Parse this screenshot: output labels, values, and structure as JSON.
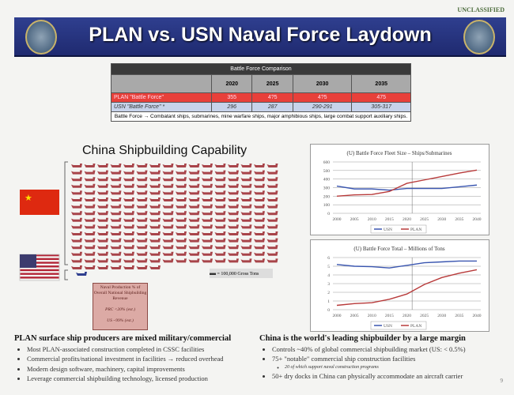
{
  "classification": "UNCLASSIFIED",
  "title": "PLAN vs. USN Naval Force Laydown",
  "table": {
    "caption": "Battle Force Comparison",
    "years": [
      "2020",
      "2025",
      "2030",
      "2035"
    ],
    "rows": [
      {
        "label": "PLAN \"Battle Force\"",
        "values": [
          "355",
          "4?5",
          "4?5",
          "475"
        ]
      },
      {
        "label": "USN \"Battle Force\" *",
        "values": [
          "296",
          "287",
          "290-291",
          "305-317"
        ]
      }
    ],
    "note": "Battle Force → Combatant ships, submarines, mine warfare ships, major amphibious ships, large combat support auxiliary ships."
  },
  "capability": {
    "title": "China Shipbuilding Capability",
    "china_icons": 247,
    "us_icons": 1,
    "legend": "= 100,000 Gross Tons",
    "note_box": {
      "title": "Naval Production % of Overall National Shipbuilding Revenue",
      "prc": "PRC <20% (est.)",
      "us": "US ~99% (est.)"
    }
  },
  "colors": {
    "banner": "#26337a",
    "plan": "#b83a3a",
    "usn": "#3a56b0",
    "ship": "#a8444a"
  },
  "chart_data": [
    {
      "type": "line",
      "title": "(U) Battle Force Fleet Size – Ships/Submarines",
      "categories": [
        "2000",
        "2005",
        "2010",
        "2015",
        "2020",
        "2025",
        "2030",
        "2035",
        "2040"
      ],
      "ylim": [
        0,
        600
      ],
      "yticks": [
        "0",
        "100",
        "200",
        "300",
        "400",
        "500",
        "600"
      ],
      "grid": true,
      "legend": "bottom",
      "series": [
        {
          "name": "USN",
          "values": [
            318,
            285,
            285,
            271,
            290,
            290,
            290,
            310,
            330
          ]
        },
        {
          "name": "PLAN",
          "values": [
            200,
            215,
            220,
            255,
            350,
            390,
            430,
            470,
            505
          ]
        }
      ]
    },
    {
      "type": "line",
      "title": "(U) Battle Force Total – Millions of Tons",
      "categories": [
        "2000",
        "2005",
        "2010",
        "2015",
        "2020",
        "2025",
        "2030",
        "2035",
        "2040"
      ],
      "ylim": [
        0,
        6
      ],
      "yticks": [
        "0",
        "1",
        "2",
        "3",
        "4",
        "5",
        "6"
      ],
      "grid": true,
      "legend": "bottom",
      "series": [
        {
          "name": "USN",
          "values": [
            5.2,
            5.0,
            4.95,
            4.8,
            5.1,
            5.4,
            5.5,
            5.6,
            5.6
          ]
        },
        {
          "name": "PLAN",
          "values": [
            0.5,
            0.7,
            0.8,
            1.2,
            1.8,
            2.9,
            3.7,
            4.2,
            4.6
          ]
        }
      ]
    }
  ],
  "left_bullets": {
    "heading": "PLAN surface ship producers are mixed military/commercial",
    "items": [
      "Most PLAN-associated construction completed in CSSC facilities",
      "Commercial profits/national investment in facilities → reduced overhead",
      "Modern design software, machinery, capital improvements",
      "Leverage commercial shipbuilding technology, licensed production"
    ]
  },
  "right_bullets": {
    "heading": "China is the world's leading shipbuilder by a large margin",
    "items": [
      "Controls ~40% of global commercial shipbuilding market (US: < 0.5%)",
      "75+ \"notable\" commercial ship construction facilities",
      "50+ dry docks in China can physically accommodate an aircraft carrier"
    ],
    "sub": "20 of which support naval construction programs"
  },
  "page_number": "9"
}
